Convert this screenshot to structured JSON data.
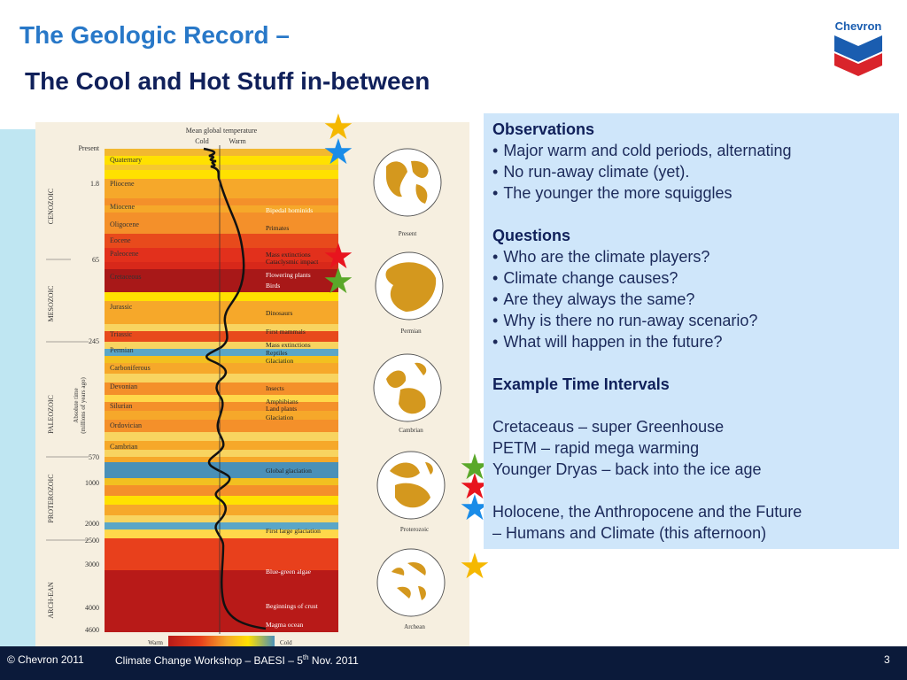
{
  "slide": {
    "title_line1": "The Geologic Record –",
    "title_line2": "The Cool and Hot Stuff in-between"
  },
  "logo": {
    "text": "Chevron",
    "colors": {
      "blue": "#1a5db0",
      "red": "#d9242b"
    }
  },
  "figure": {
    "header": "Mean global temperature",
    "cold_label": "Cold",
    "warm_label": "Warm",
    "axis_label_line1": "Absolute time",
    "axis_label_line2": "(millions of years ago)",
    "eras": [
      "CENOZOIC",
      "MESOZOIC",
      "PALEOZOIC",
      "PROTEROZOIC",
      "ARCH-EAN"
    ],
    "ticks": [
      "Present",
      "1.8",
      "65",
      "245",
      "570",
      "1000",
      "2000",
      "2500",
      "3000",
      "4000",
      "4600"
    ],
    "periods": [
      "Quaternary",
      "Pliocene",
      "Miocene",
      "Oligocene",
      "Eocene",
      "Paleocene",
      "Cretaceous",
      "Jurassic",
      "Triassic",
      "Permian",
      "Carboniferous",
      "Devonian",
      "Silurian",
      "Ordovician",
      "Cambrian"
    ],
    "events": [
      "Bipedal hominids",
      "Primates",
      "Mass extinctions",
      "Cataclysmic impact",
      "Flowering plants",
      "Birds",
      "Dinosaurs",
      "First mammals",
      "Mass extinctions",
      "Reptiles",
      "Glaciation",
      "Insects",
      "Amphibians",
      "Land plants",
      "Glaciation",
      "Global glaciation",
      "First large glaciation",
      "Blue-green algae",
      "Beginnings of crust",
      "Magma ocean"
    ],
    "globes": [
      "Present",
      "Permian",
      "Cambrian",
      "Proterozoic",
      "Archean"
    ],
    "scale_warm": "Warm",
    "scale_cold": "Cold"
  },
  "observations": {
    "heading": "Observations",
    "items": [
      "Major warm and cold periods, alternating",
      "No run-away climate (yet).",
      "The younger the more squiggles"
    ]
  },
  "questions": {
    "heading": "Questions",
    "items": [
      "Who are the climate players?",
      "Climate change causes?",
      "Are they always the same?",
      "Why is there no run-away scenario?",
      "What will happen in the future?"
    ]
  },
  "examples": {
    "heading": "Example Time Intervals",
    "lines": [
      "Cretaceaus – super Greenhouse",
      "PETM – rapid mega warming",
      "Younger Dryas – back into the ice age",
      "Holocene, the Anthropocene and the Future",
      "– Humans and Climate (this afternoon)"
    ]
  },
  "footer": {
    "copyright": "© Chevron 2011",
    "workshop_pre": "Climate Change Workshop – BAESI – 5",
    "workshop_sup": "th",
    "workshop_post": " Nov. 2011",
    "page": "3"
  },
  "star_colors": {
    "yellow": "#f5b800",
    "blue": "#1a8ce8",
    "red": "#e8141e",
    "green": "#5aa82a"
  }
}
